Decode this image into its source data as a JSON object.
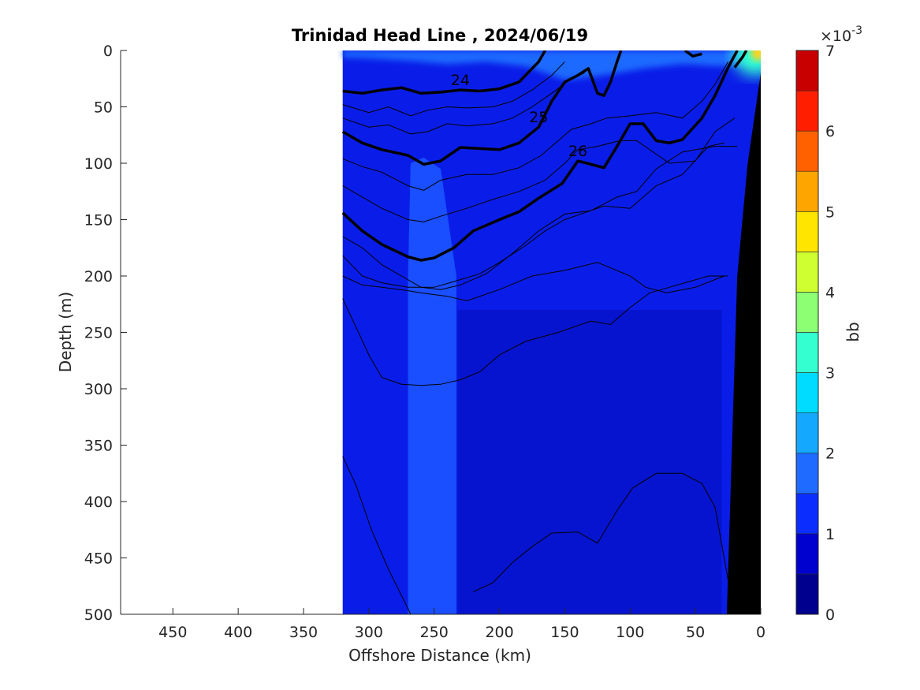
{
  "chart_data": {
    "type": "heatmap",
    "title": "Trinidad Head Line , 2024/06/19",
    "xlabel": "Offshore Distance (km)",
    "ylabel": "Depth (m)",
    "xlim": [
      490,
      0
    ],
    "ylim": [
      500,
      0
    ],
    "x_reversed": true,
    "y_reversed": true,
    "xticks": [
      450,
      400,
      350,
      300,
      250,
      200,
      150,
      100,
      50,
      0
    ],
    "yticks": [
      0,
      50,
      100,
      150,
      200,
      250,
      300,
      350,
      400,
      450,
      500
    ],
    "data_extent_km": [
      320,
      0
    ],
    "colorbar": {
      "label": "bb",
      "exponent_label": "×10",
      "exponent_power": "-3",
      "ticks": [
        0,
        1,
        2,
        3,
        4,
        5,
        6,
        7
      ],
      "levels": [
        0,
        0.5,
        1,
        1.5,
        2,
        2.5,
        3,
        3.5,
        4,
        4.5,
        5,
        5.5,
        6,
        6.5,
        7
      ],
      "colors": [
        "#00008f",
        "#0000cf",
        "#0b2eff",
        "#1f6bff",
        "#14a8ff",
        "#00dcff",
        "#33ffd0",
        "#8cff73",
        "#cfff30",
        "#ffe500",
        "#ffa500",
        "#ff6000",
        "#ff1f00",
        "#c80000"
      ]
    },
    "field_colors": {
      "background": "#0a1de8",
      "deep_band": "#0714cf",
      "light_band": "#1a4fff",
      "surface": "#1f6bff",
      "hotspot": "#ffd21a",
      "seafloor": "#000000"
    },
    "bold_contours": [
      {
        "level": "24",
        "points": [
          [
            320,
            36
          ],
          [
            305,
            38
          ],
          [
            290,
            35
          ],
          [
            275,
            33
          ],
          [
            260,
            38
          ],
          [
            245,
            37
          ],
          [
            230,
            35
          ],
          [
            215,
            36
          ],
          [
            200,
            34
          ],
          [
            185,
            28
          ],
          [
            170,
            10
          ],
          [
            165,
            0
          ]
        ]
      },
      {
        "level": "25",
        "points": [
          [
            320,
            72
          ],
          [
            305,
            82
          ],
          [
            290,
            88
          ],
          [
            270,
            93
          ],
          [
            258,
            101
          ],
          [
            245,
            98
          ],
          [
            230,
            86
          ],
          [
            215,
            87
          ],
          [
            200,
            88
          ],
          [
            185,
            82
          ],
          [
            170,
            68
          ],
          [
            160,
            45
          ],
          [
            150,
            28
          ],
          [
            140,
            22
          ],
          [
            132,
            16
          ],
          [
            125,
            38
          ],
          [
            120,
            40
          ],
          [
            115,
            28
          ],
          [
            110,
            10
          ],
          [
            107,
            0
          ]
        ]
      },
      {
        "level": "26",
        "points": [
          [
            320,
            144
          ],
          [
            305,
            160
          ],
          [
            290,
            172
          ],
          [
            270,
            183
          ],
          [
            260,
            186
          ],
          [
            250,
            184
          ],
          [
            235,
            175
          ],
          [
            220,
            160
          ],
          [
            200,
            150
          ],
          [
            185,
            143
          ],
          [
            170,
            131
          ],
          [
            152,
            118
          ],
          [
            140,
            98
          ],
          [
            133,
            100
          ],
          [
            120,
            104
          ],
          [
            110,
            85
          ],
          [
            100,
            65
          ],
          [
            90,
            65
          ],
          [
            80,
            80
          ],
          [
            70,
            82
          ],
          [
            60,
            79
          ],
          [
            45,
            60
          ],
          [
            35,
            40
          ],
          [
            25,
            15
          ],
          [
            18,
            0
          ]
        ]
      },
      {
        "level": "",
        "points": [
          [
            58,
            0
          ],
          [
            52,
            5
          ],
          [
            45,
            3
          ]
        ]
      },
      {
        "level": "",
        "points": [
          [
            20,
            15
          ],
          [
            14,
            6
          ],
          [
            11,
            0
          ]
        ]
      }
    ],
    "thin_contours": [
      [
        [
          320,
          48
        ],
        [
          300,
          55
        ],
        [
          285,
          50
        ],
        [
          268,
          58
        ],
        [
          255,
          53
        ],
        [
          240,
          50
        ],
        [
          225,
          51
        ],
        [
          205,
          50
        ],
        [
          190,
          45
        ],
        [
          175,
          35
        ],
        [
          160,
          22
        ],
        [
          150,
          10
        ]
      ],
      [
        [
          320,
          60
        ],
        [
          300,
          68
        ],
        [
          285,
          66
        ],
        [
          268,
          74
        ],
        [
          255,
          72
        ],
        [
          240,
          65
        ],
        [
          225,
          67
        ],
        [
          205,
          65
        ],
        [
          190,
          60
        ],
        [
          175,
          50
        ],
        [
          160,
          38
        ],
        [
          145,
          25
        ],
        [
          135,
          20
        ]
      ],
      [
        [
          320,
          96
        ],
        [
          305,
          103
        ],
        [
          290,
          108
        ],
        [
          270,
          120
        ],
        [
          258,
          124
        ],
        [
          245,
          115
        ],
        [
          225,
          110
        ],
        [
          205,
          110
        ],
        [
          185,
          104
        ],
        [
          168,
          93
        ],
        [
          155,
          80
        ],
        [
          145,
          70
        ],
        [
          130,
          65
        ],
        [
          118,
          60
        ],
        [
          100,
          58
        ],
        [
          80,
          55
        ],
        [
          60,
          60
        ],
        [
          45,
          45
        ],
        [
          35,
          30
        ],
        [
          25,
          10
        ]
      ],
      [
        [
          320,
          120
        ],
        [
          305,
          130
        ],
        [
          290,
          140
        ],
        [
          270,
          150
        ],
        [
          258,
          152
        ],
        [
          245,
          147
        ],
        [
          225,
          140
        ],
        [
          205,
          132
        ],
        [
          185,
          125
        ],
        [
          165,
          115
        ],
        [
          150,
          100
        ],
        [
          140,
          88
        ],
        [
          125,
          85
        ],
        [
          108,
          80
        ],
        [
          95,
          80
        ],
        [
          70,
          100
        ],
        [
          50,
          98
        ],
        [
          35,
          72
        ],
        [
          20,
          60
        ]
      ],
      [
        [
          320,
          165
        ],
        [
          305,
          175
        ],
        [
          290,
          190
        ],
        [
          275,
          200
        ],
        [
          260,
          210
        ],
        [
          245,
          212
        ],
        [
          230,
          208
        ],
        [
          210,
          198
        ],
        [
          190,
          180
        ],
        [
          170,
          160
        ],
        [
          150,
          145
        ],
        [
          130,
          142
        ],
        [
          110,
          130
        ],
        [
          95,
          125
        ],
        [
          80,
          105
        ],
        [
          60,
          90
        ],
        [
          35,
          85
        ],
        [
          18,
          85
        ]
      ],
      [
        [
          320,
          182
        ],
        [
          305,
          200
        ],
        [
          290,
          206
        ],
        [
          270,
          210
        ],
        [
          250,
          210
        ],
        [
          235,
          205
        ],
        [
          215,
          198
        ],
        [
          200,
          188
        ],
        [
          180,
          173
        ],
        [
          165,
          160
        ],
        [
          150,
          150
        ],
        [
          120,
          138
        ],
        [
          100,
          140
        ],
        [
          80,
          120
        ],
        [
          60,
          110
        ],
        [
          40,
          85
        ],
        [
          28,
          82
        ]
      ],
      [
        [
          320,
          200
        ],
        [
          305,
          208
        ],
        [
          290,
          210
        ],
        [
          270,
          213
        ],
        [
          260,
          215
        ],
        [
          240,
          218
        ],
        [
          225,
          222
        ],
        [
          200,
          212
        ],
        [
          175,
          200
        ],
        [
          150,
          195
        ],
        [
          125,
          188
        ],
        [
          100,
          200
        ],
        [
          88,
          210
        ],
        [
          72,
          215
        ],
        [
          50,
          210
        ],
        [
          28,
          200
        ]
      ],
      [
        [
          320,
          220
        ],
        [
          310,
          245
        ],
        [
          300,
          270
        ],
        [
          290,
          290
        ],
        [
          275,
          296
        ],
        [
          260,
          297
        ],
        [
          245,
          296
        ],
        [
          230,
          292
        ],
        [
          215,
          285
        ],
        [
          200,
          270
        ],
        [
          180,
          258
        ],
        [
          155,
          250
        ],
        [
          130,
          240
        ],
        [
          115,
          243
        ],
        [
          100,
          228
        ],
        [
          85,
          215
        ],
        [
          70,
          210
        ],
        [
          55,
          205
        ],
        [
          40,
          200
        ],
        [
          25,
          200
        ]
      ],
      [
        [
          320,
          360
        ],
        [
          310,
          385
        ],
        [
          298,
          425
        ],
        [
          285,
          460
        ],
        [
          270,
          495
        ],
        [
          268,
          500
        ]
      ],
      [
        [
          220,
          480
        ],
        [
          205,
          472
        ],
        [
          190,
          454
        ],
        [
          175,
          440
        ],
        [
          160,
          428
        ],
        [
          140,
          427
        ],
        [
          125,
          437
        ],
        [
          110,
          408
        ],
        [
          98,
          388
        ],
        [
          80,
          375
        ],
        [
          60,
          375
        ],
        [
          45,
          384
        ],
        [
          35,
          405
        ],
        [
          28,
          450
        ],
        [
          25,
          470
        ]
      ]
    ]
  }
}
